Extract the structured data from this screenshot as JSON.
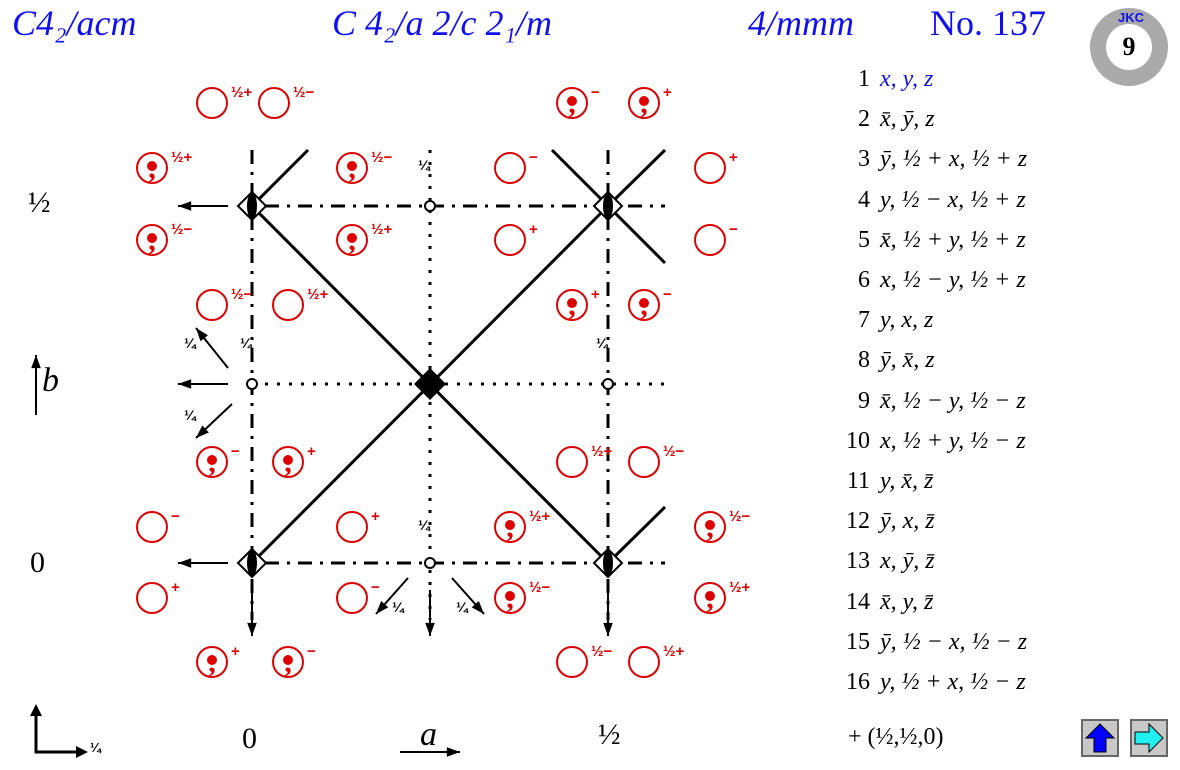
{
  "header": {
    "short_symbol": "C4₂/acm",
    "full_symbol": "C 4₂/a 2/c 2₁/m",
    "point_group": "4/mmm",
    "number": "No. 137",
    "logo": "JKC"
  },
  "axes": {
    "b_label": "b",
    "a_label": "a",
    "y_half": "½",
    "y_zero": "0",
    "x_zero": "0",
    "x_half": "½",
    "origin_height": "¼"
  },
  "symbol_heights": [
    "¼",
    "¼",
    "¼",
    "¼",
    "¼",
    "¼",
    "¼"
  ],
  "symbols": [
    {
      "comma": false,
      "label": "½+"
    },
    {
      "comma": false,
      "label": "½−"
    },
    {
      "comma": true,
      "label": "−"
    },
    {
      "comma": true,
      "label": "+"
    },
    {
      "comma": true,
      "label": "½+"
    },
    {
      "comma": true,
      "label": "½−"
    },
    {
      "comma": false,
      "label": "−"
    },
    {
      "comma": false,
      "label": "+"
    },
    {
      "comma": true,
      "label": "½−"
    },
    {
      "comma": true,
      "label": "½+"
    },
    {
      "comma": false,
      "label": "+"
    },
    {
      "comma": false,
      "label": "−"
    },
    {
      "comma": false,
      "label": "½−"
    },
    {
      "comma": false,
      "label": "½+"
    },
    {
      "comma": true,
      "label": "+"
    },
    {
      "comma": true,
      "label": "−"
    },
    {
      "comma": true,
      "label": "−"
    },
    {
      "comma": true,
      "label": "+"
    },
    {
      "comma": false,
      "label": "½+"
    },
    {
      "comma": false,
      "label": "½−"
    },
    {
      "comma": false,
      "label": "−"
    },
    {
      "comma": false,
      "label": "+"
    },
    {
      "comma": true,
      "label": "½+"
    },
    {
      "comma": true,
      "label": "½−"
    },
    {
      "comma": false,
      "label": "+"
    },
    {
      "comma": false,
      "label": "−"
    },
    {
      "comma": true,
      "label": "½−"
    },
    {
      "comma": true,
      "label": "½+"
    },
    {
      "comma": true,
      "label": "+"
    },
    {
      "comma": true,
      "label": "−"
    },
    {
      "comma": false,
      "label": "½−"
    },
    {
      "comma": false,
      "label": "½+"
    }
  ],
  "positions": [
    {
      "n": "1",
      "coord": "x, y, z",
      "highlight": true
    },
    {
      "n": "2",
      "coord": "x̄, ȳ, z"
    },
    {
      "n": "3",
      "coord": "ȳ, ½ + x, ½ + z"
    },
    {
      "n": "4",
      "coord": "y, ½ − x, ½ + z"
    },
    {
      "n": "5",
      "coord": "x̄, ½ + y, ½ + z"
    },
    {
      "n": "6",
      "coord": "x, ½ − y, ½ + z"
    },
    {
      "n": "7",
      "coord": "y, x, z"
    },
    {
      "n": "8",
      "coord": "ȳ, x̄, z"
    },
    {
      "n": "9",
      "coord": "x̄, ½ − y, ½ − z"
    },
    {
      "n": "10",
      "coord": "x, ½ + y, ½ − z"
    },
    {
      "n": "11",
      "coord": "y, x̄, z̄"
    },
    {
      "n": "12",
      "coord": "ȳ, x, z̄"
    },
    {
      "n": "13",
      "coord": "x, ȳ, z̄"
    },
    {
      "n": "14",
      "coord": "x̄, y, z̄"
    },
    {
      "n": "15",
      "coord": "ȳ, ½ − x, ½ − z"
    },
    {
      "n": "16",
      "coord": "y, ½ + x, ½ − z"
    }
  ],
  "centering": "+ (½,½,0)",
  "nav": {
    "up": "up-arrow",
    "next": "right-arrow"
  },
  "colors": {
    "title": "#1010ee",
    "symbols": "#dd0000",
    "up_button": "#0000ff",
    "next_button": "#20f0f0"
  }
}
